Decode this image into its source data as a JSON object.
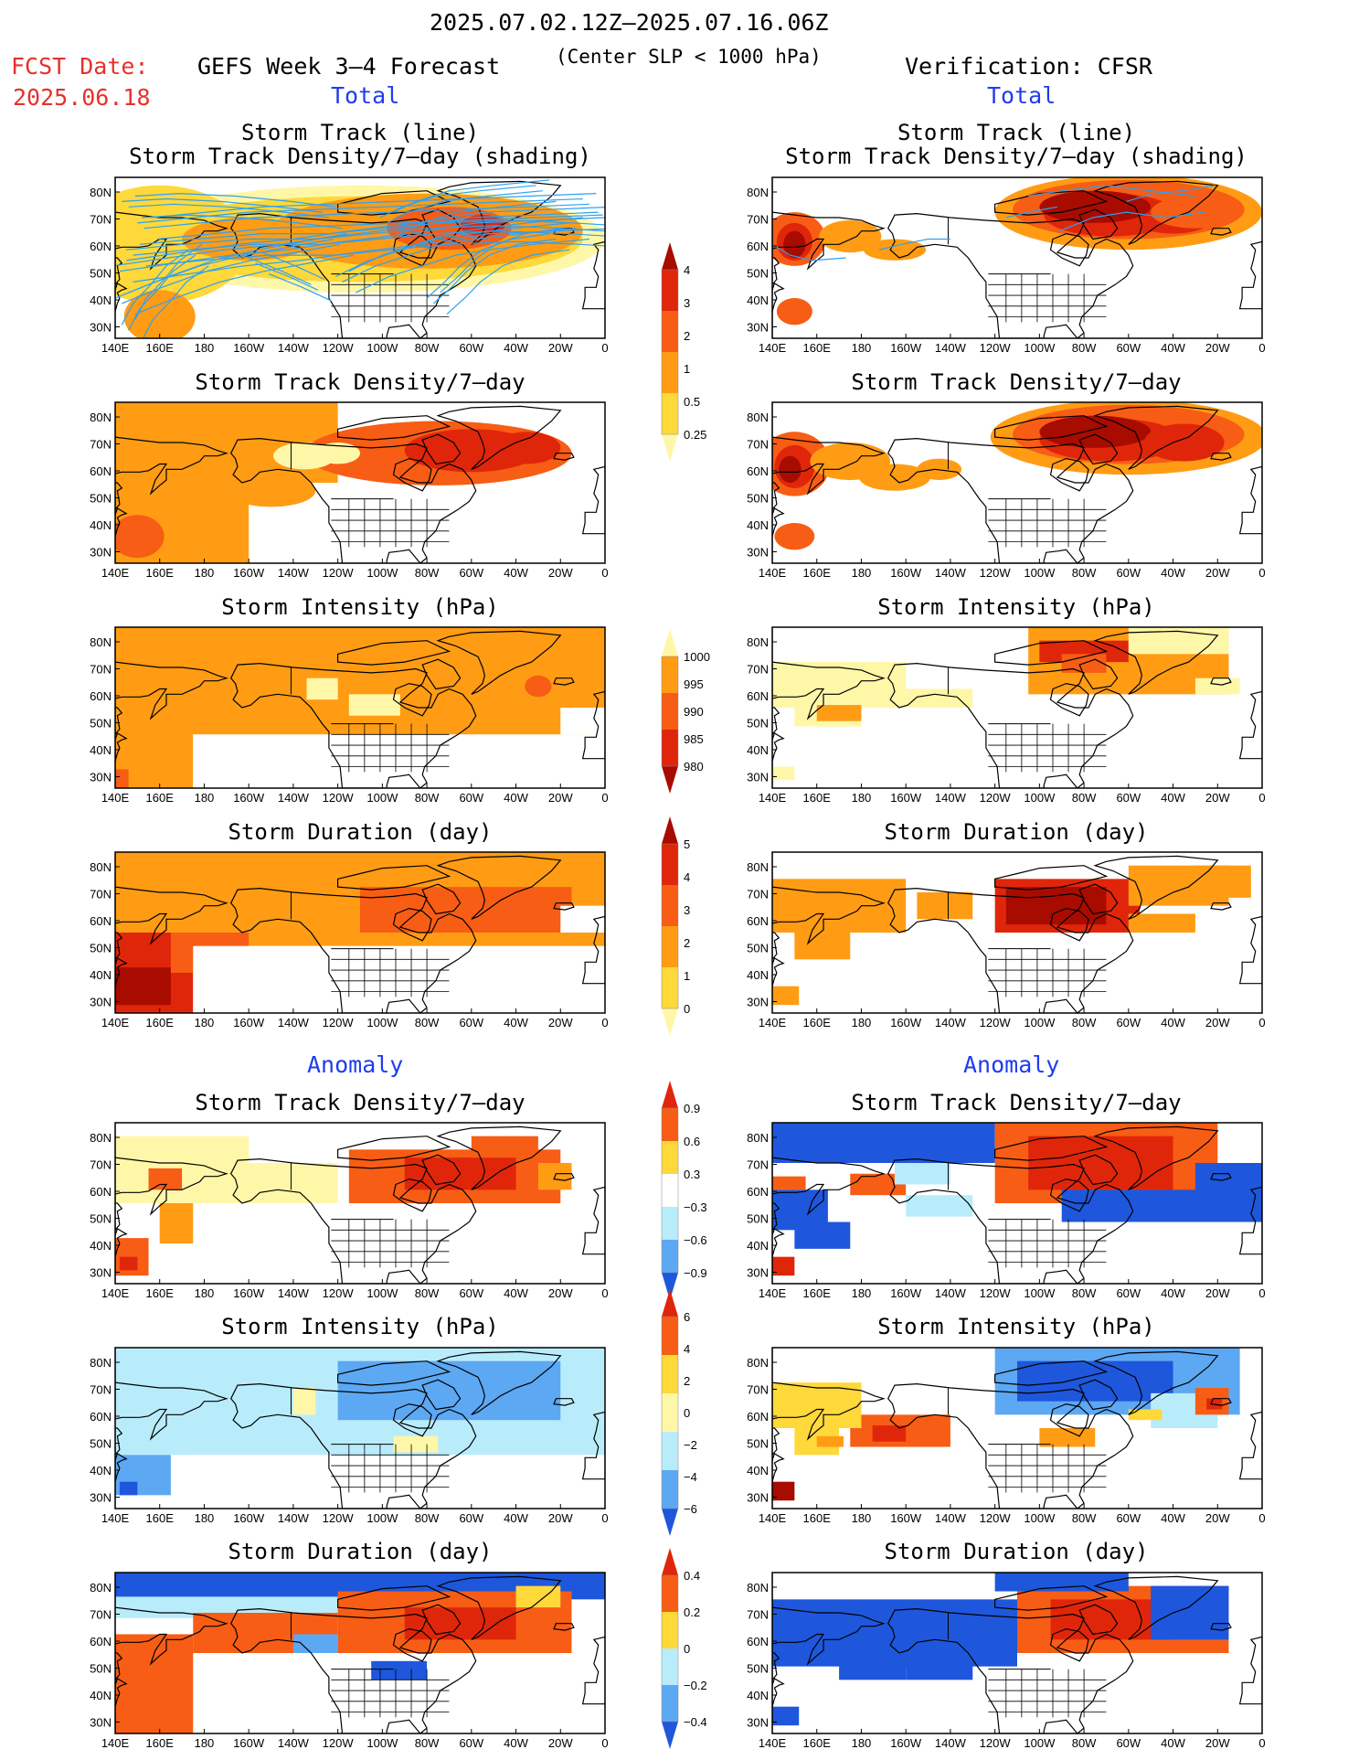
{
  "header": {
    "date_range": "2025.07.02.12Z–2025.07.16.06Z",
    "fcst_label": "FCST Date:",
    "fcst_date": "2025.06.18",
    "forecast_title": "GEFS Week 3–4 Forecast",
    "slp_note": "(Center SLP < 1000 hPa)",
    "verification": "Verification: CFSR",
    "total_left": "Total",
    "total_right": "Total",
    "anomaly_left": "Anomaly",
    "anomaly_right": "Anomaly"
  },
  "colors": {
    "pale_yellow": "#fff7a8",
    "yellow": "#ffd83a",
    "orange": "#ff9c14",
    "dark_orange": "#f75d14",
    "red": "#e0260a",
    "dark_red": "#a80b00",
    "light_blue": "#b9ecfb",
    "blue": "#5da8f3",
    "dark_blue": "#1e57dc",
    "track_line": "#2fa0f0"
  },
  "map_axes": {
    "lon_labels": [
      "140E",
      "160E",
      "180",
      "160W",
      "140W",
      "120W",
      "100W",
      "80W",
      "60W",
      "40W",
      "20W",
      "0"
    ],
    "lat_labels": [
      "80N",
      "70N",
      "60N",
      "50N",
      "40N",
      "30N"
    ]
  },
  "colorbars": [
    {
      "name": "density",
      "levels": [
        "4",
        "3",
        "2",
        "1",
        "0.5",
        "0.25"
      ]
    },
    {
      "name": "intensity",
      "levels": [
        "1000",
        "995",
        "990",
        "985",
        "980"
      ]
    },
    {
      "name": "duration",
      "levels": [
        "5",
        "4",
        "3",
        "2",
        "1",
        "0"
      ]
    },
    {
      "name": "density-anomaly",
      "levels": [
        "0.9",
        "0.6",
        "0.3",
        "−0.3",
        "−0.6",
        "−0.9"
      ]
    },
    {
      "name": "intensity-anomaly",
      "levels": [
        "6",
        "4",
        "2",
        "0",
        "−2",
        "−4",
        "−6"
      ]
    },
    {
      "name": "duration-anomaly",
      "levels": [
        "0.4",
        "0.2",
        "0",
        "−0.2",
        "−0.4"
      ]
    }
  ],
  "panels": [
    {
      "title1": "Storm Track (line)",
      "title2": "Storm Track Density/7–day (shading)"
    },
    {
      "title1": "Storm Track (line)",
      "title2": "Storm Track Density/7–day (shading)"
    },
    {
      "title1": "",
      "title2": "Storm Track Density/7–day"
    },
    {
      "title1": "",
      "title2": "Storm Track Density/7–day"
    },
    {
      "title1": "",
      "title2": "Storm Intensity (hPa)"
    },
    {
      "title1": "",
      "title2": "Storm Intensity (hPa)"
    },
    {
      "title1": "",
      "title2": "Storm Duration (day)"
    },
    {
      "title1": "",
      "title2": "Storm Duration (day)"
    },
    {
      "title1": "",
      "title2": "Storm Track Density/7–day"
    },
    {
      "title1": "",
      "title2": "Storm Track Density/7–day"
    },
    {
      "title1": "",
      "title2": "Storm Intensity (hPa)"
    },
    {
      "title1": "",
      "title2": "Storm Intensity (hPa)"
    },
    {
      "title1": "",
      "title2": "Storm Duration (day)"
    },
    {
      "title1": "",
      "title2": "Storm Duration (day)"
    }
  ],
  "chart_data": {
    "type": "heatmap",
    "description_axes": "Map panels spanning 140E to 0 longitude and about 25N to 85N latitude",
    "xlim": [
      "140E",
      "0"
    ],
    "ylim": [
      "25N",
      "85N"
    ],
    "colorbar_scales": {
      "density": [
        0.25,
        0.5,
        1,
        2,
        3,
        4
      ],
      "intensity": [
        980,
        985,
        990,
        995,
        1000
      ],
      "duration": [
        0,
        1,
        2,
        3,
        4,
        5
      ],
      "density_anomaly": [
        -0.9,
        -0.6,
        -0.3,
        0.3,
        0.6,
        0.9
      ],
      "intensity_anomaly": [
        -6,
        -4,
        -2,
        0,
        2,
        4,
        6
      ],
      "duration_anomaly": [
        -0.4,
        -0.2,
        0,
        0.2,
        0.4
      ]
    }
  }
}
